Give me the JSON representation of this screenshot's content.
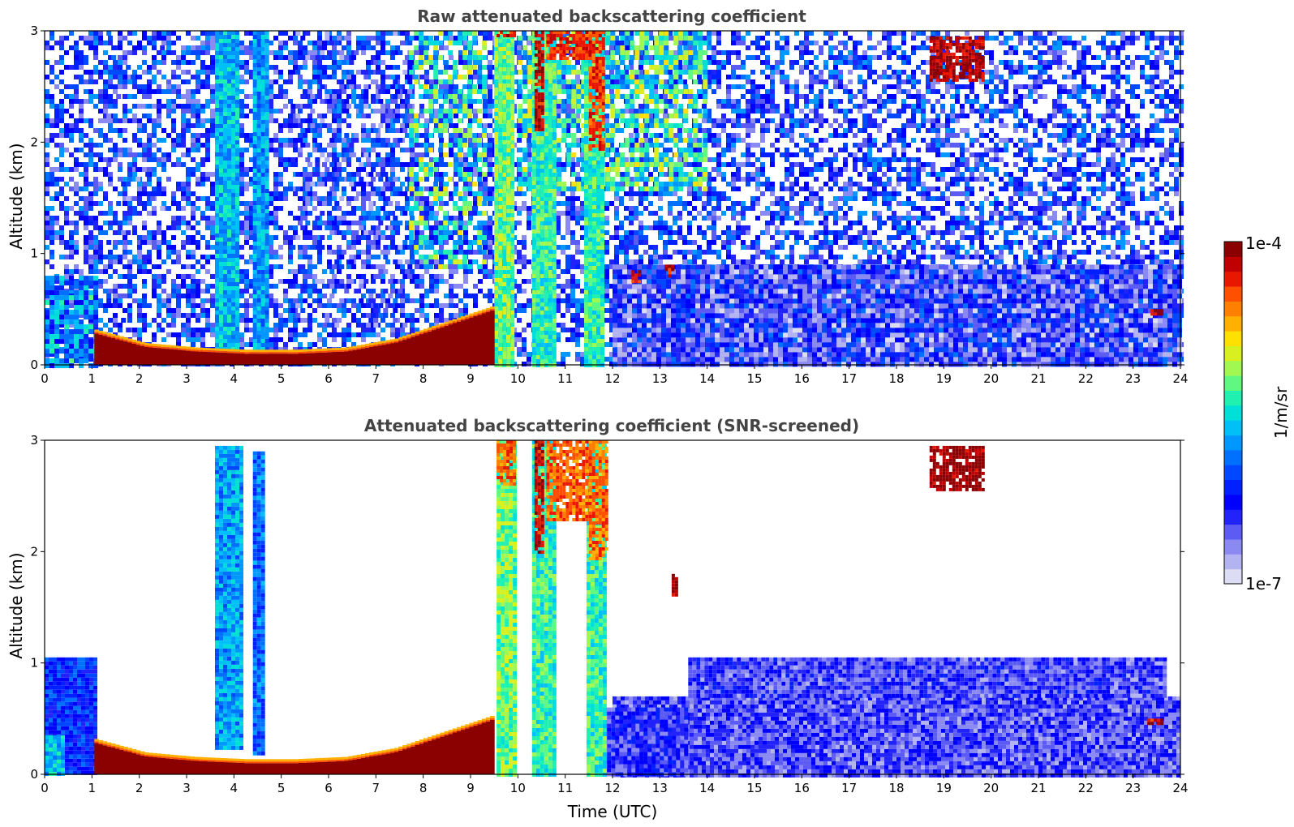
{
  "chart_data": [
    {
      "type": "heatmap",
      "title": "Raw attenuated backscattering coefficient",
      "xlabel": "",
      "ylabel": "Altitude (km)",
      "xlim": [
        0,
        24
      ],
      "ylim": [
        0,
        3
      ],
      "x_ticks": [
        "0",
        "1",
        "2",
        "3",
        "4",
        "5",
        "6",
        "7",
        "8",
        "9",
        "10",
        "11",
        "12",
        "13",
        "14",
        "15",
        "16",
        "17",
        "18",
        "19",
        "20",
        "21",
        "22",
        "23",
        "24"
      ],
      "y_ticks": [
        "0",
        "1",
        "2",
        "3"
      ],
      "value_scale": "log",
      "value_range": [
        "1e-7",
        "1e-4"
      ],
      "features": [
        {
          "kind": "background",
          "x": [
            0,
            24
          ],
          "y": [
            0,
            3
          ],
          "level": 0.25,
          "density": 0.55
        },
        {
          "kind": "background",
          "x": [
            1.1,
            2.5
          ],
          "y": [
            0.3,
            3
          ],
          "level": 0.2,
          "density": 0.04
        },
        {
          "kind": "background",
          "x": [
            5.2,
            7.7
          ],
          "y": [
            0.35,
            3
          ],
          "level": 0.2,
          "density": 0.15
        },
        {
          "kind": "background",
          "x": [
            7.7,
            9.3
          ],
          "y": [
            0.9,
            3
          ],
          "level": 0.55,
          "density": 0.45
        },
        {
          "kind": "background",
          "x": [
            10,
            14
          ],
          "y": [
            1.6,
            3
          ],
          "level": 0.55,
          "density": 0.6
        },
        {
          "kind": "background",
          "x": [
            12,
            24
          ],
          "y": [
            0,
            0.9
          ],
          "level": 0.18,
          "density": 1.0
        },
        {
          "kind": "background",
          "x": [
            0,
            1.1
          ],
          "y": [
            0,
            0.8
          ],
          "level": 0.4,
          "density": 0.9
        },
        {
          "kind": "column",
          "x": [
            3.6,
            4.1
          ],
          "y": [
            0.1,
            3
          ],
          "level": 0.45
        },
        {
          "kind": "column",
          "x": [
            4.4,
            4.7
          ],
          "y": [
            0.15,
            3
          ],
          "level": 0.42
        },
        {
          "kind": "column",
          "x": [
            9.5,
            9.9
          ],
          "y": [
            0,
            3
          ],
          "level": 0.6
        },
        {
          "kind": "column",
          "x": [
            10.3,
            10.75
          ],
          "y": [
            0,
            3
          ],
          "level": 0.55
        },
        {
          "kind": "column",
          "x": [
            11.4,
            11.8
          ],
          "y": [
            0,
            3
          ],
          "level": 0.55
        },
        {
          "kind": "layer",
          "x": [
            1.05,
            9.5
          ],
          "y_bottom": [
            0.28,
            0.16,
            0.12,
            0.1,
            0.1,
            0.12,
            0.2,
            0.35,
            0.5
          ],
          "level": 1.0
        },
        {
          "kind": "cloud",
          "x": [
            9.55,
            9.9
          ],
          "y": [
            2.95,
            3
          ],
          "level": 0.92
        },
        {
          "kind": "cloud",
          "x": [
            10.35,
            10.5
          ],
          "y": [
            2.1,
            3
          ],
          "level": 0.95
        },
        {
          "kind": "cloud",
          "x": [
            10.6,
            11.5
          ],
          "y": [
            2.75,
            3
          ],
          "level": 0.9
        },
        {
          "kind": "cloud",
          "x": [
            11.5,
            11.8
          ],
          "y": [
            1.95,
            3
          ],
          "level": 0.88
        },
        {
          "kind": "cloud",
          "x": [
            18.7,
            19.8
          ],
          "y": [
            2.55,
            2.95
          ],
          "level": 0.97
        },
        {
          "kind": "cloud",
          "x": [
            12.4,
            12.6
          ],
          "y": [
            0.75,
            0.85
          ],
          "level": 0.95
        },
        {
          "kind": "cloud",
          "x": [
            13.1,
            13.3
          ],
          "y": [
            0.8,
            0.9
          ],
          "level": 0.95
        },
        {
          "kind": "cloud",
          "x": [
            23.3,
            23.6
          ],
          "y": [
            0.45,
            0.5
          ],
          "level": 0.95
        }
      ]
    },
    {
      "type": "heatmap",
      "title": "Attenuated backscattering coefficient (SNR-screened)",
      "xlabel": "Time (UTC)",
      "ylabel": "Altitude (km)",
      "xlim": [
        0,
        24
      ],
      "ylim": [
        0,
        3
      ],
      "x_ticks": [
        "0",
        "1",
        "2",
        "3",
        "4",
        "5",
        "6",
        "7",
        "8",
        "9",
        "10",
        "11",
        "12",
        "13",
        "14",
        "15",
        "16",
        "17",
        "18",
        "19",
        "20",
        "21",
        "22",
        "23",
        "24"
      ],
      "y_ticks": [
        "0",
        "1",
        "2",
        "3"
      ],
      "value_scale": "log",
      "value_range": [
        "1e-7",
        "1e-4"
      ],
      "features": [
        {
          "kind": "region",
          "x": [
            0,
            1.05
          ],
          "y": [
            0,
            1.05
          ],
          "level": 0.28
        },
        {
          "kind": "region",
          "x": [
            0,
            0.4
          ],
          "y": [
            0,
            0.35
          ],
          "level": 0.45
        },
        {
          "kind": "region",
          "x": [
            12,
            24
          ],
          "y": [
            0,
            0.7
          ],
          "level": 0.15
        },
        {
          "kind": "region",
          "x": [
            13.6,
            23.7
          ],
          "y": [
            0.7,
            1.05
          ],
          "level": 0.16
        },
        {
          "kind": "region",
          "x": [
            11.8,
            13.6
          ],
          "y": [
            0,
            0.6
          ],
          "level": 0.18
        },
        {
          "kind": "column",
          "x": [
            3.6,
            4.15
          ],
          "y": [
            0.25,
            2.95
          ],
          "level": 0.42
        },
        {
          "kind": "column",
          "x": [
            4.4,
            4.6
          ],
          "y": [
            0.2,
            2.9
          ],
          "level": 0.35
        },
        {
          "kind": "column",
          "x": [
            9.55,
            9.95
          ],
          "y": [
            0,
            3
          ],
          "level": 0.6
        },
        {
          "kind": "column",
          "x": [
            10.3,
            10.75
          ],
          "y": [
            0,
            3
          ],
          "level": 0.55
        },
        {
          "kind": "column",
          "x": [
            11.45,
            11.8
          ],
          "y": [
            0,
            3
          ],
          "level": 0.55
        },
        {
          "kind": "layer",
          "x": [
            1.05,
            9.5
          ],
          "y_bottom": [
            0.28,
            0.16,
            0.12,
            0.1,
            0.1,
            0.12,
            0.2,
            0.35,
            0.5
          ],
          "level": 1.0
        },
        {
          "kind": "cloud",
          "x": [
            9.55,
            9.95
          ],
          "y": [
            2.6,
            3
          ],
          "level": 0.85
        },
        {
          "kind": "cloud",
          "x": [
            10.35,
            10.5
          ],
          "y": [
            2.0,
            3
          ],
          "level": 0.95
        },
        {
          "kind": "cloud",
          "x": [
            10.6,
            11.5
          ],
          "y": [
            2.3,
            3
          ],
          "level": 0.85
        },
        {
          "kind": "cloud",
          "x": [
            11.5,
            11.85
          ],
          "y": [
            1.95,
            3
          ],
          "level": 0.84
        },
        {
          "kind": "cloud",
          "x": [
            18.7,
            19.8
          ],
          "y": [
            2.55,
            2.95
          ],
          "level": 1.0
        },
        {
          "kind": "cloud",
          "x": [
            13.25,
            13.35
          ],
          "y": [
            1.6,
            1.8
          ],
          "level": 1.0
        },
        {
          "kind": "cloud",
          "x": [
            23.3,
            23.6
          ],
          "y": [
            0.45,
            0.5
          ],
          "level": 0.95
        }
      ]
    }
  ],
  "colorbar": {
    "label": "1/m/sr",
    "max_label": "1e-4",
    "min_label": "1e-7",
    "colors": [
      "#dcdcf5",
      "#b3b3f2",
      "#8a8af2",
      "#5c5cf5",
      "#2222fa",
      "#0000ff",
      "#0020ff",
      "#0048ff",
      "#0070ff",
      "#0098ff",
      "#00c0f8",
      "#00e0d8",
      "#20f0b0",
      "#60f880",
      "#a0f850",
      "#d8f020",
      "#ffe000",
      "#ffb000",
      "#ff8000",
      "#ff5000",
      "#e81800",
      "#c00000",
      "#8b0000"
    ]
  }
}
